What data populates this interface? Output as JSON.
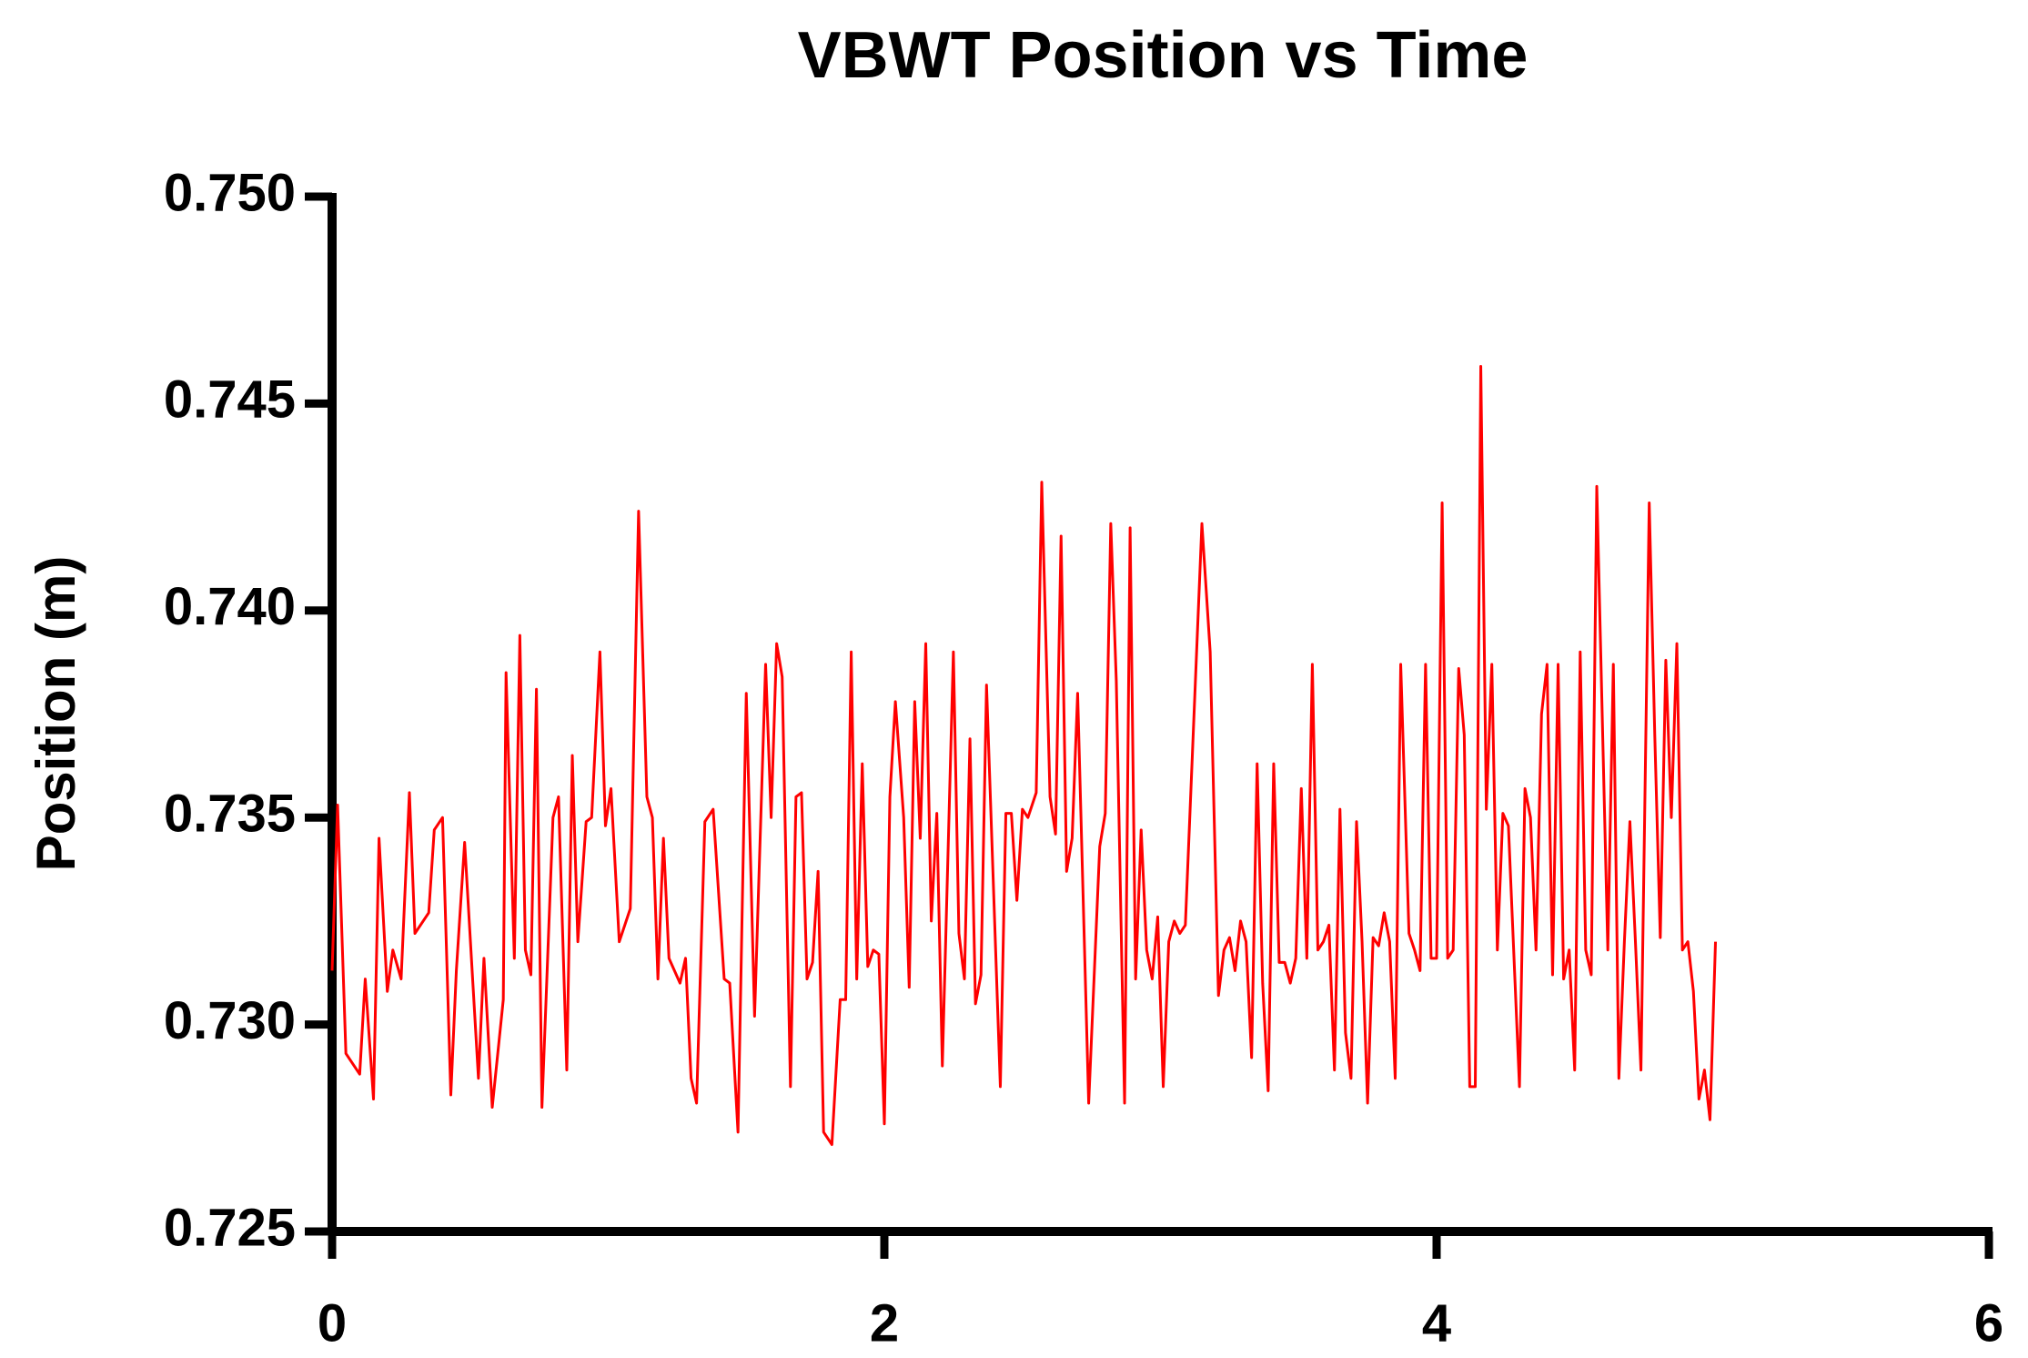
{
  "chart_data": {
    "type": "line",
    "title": "VBWT Position vs Time",
    "y_label": "Position (m)",
    "xlim": [
      0,
      6
    ],
    "xticks": [
      0,
      2,
      4,
      6
    ],
    "ylim": [
      0.725,
      0.75
    ],
    "yticks": [
      {
        "value": 0.725,
        "label": "0.725"
      },
      {
        "value": 0.73,
        "label": "0.730"
      },
      {
        "value": 0.735,
        "label": "0.735"
      },
      {
        "value": 0.74,
        "label": "0.740"
      },
      {
        "value": 0.745,
        "label": "0.745"
      },
      {
        "value": 0.75,
        "label": "0.750"
      }
    ],
    "grid": false,
    "series": [
      {
        "color": "#ff0000",
        "x": [
          0,
          0.02,
          0.05,
          0.1,
          0.12,
          0.15,
          0.17,
          0.2,
          0.22,
          0.25,
          0.28,
          0.3,
          0.35,
          0.37,
          0.4,
          0.43,
          0.45,
          0.48,
          0.53,
          0.55,
          0.58,
          0.62,
          0.63,
          0.66,
          0.68,
          0.7,
          0.72,
          0.74,
          0.76,
          0.8,
          0.82,
          0.85,
          0.87,
          0.89,
          0.92,
          0.94,
          0.97,
          0.99,
          1.01,
          1.04,
          1.08,
          1.11,
          1.14,
          1.16,
          1.18,
          1.2,
          1.22,
          1.26,
          1.28,
          1.3,
          1.32,
          1.35,
          1.38,
          1.42,
          1.44,
          1.47,
          1.5,
          1.53,
          1.57,
          1.59,
          1.61,
          1.63,
          1.66,
          1.68,
          1.7,
          1.72,
          1.74,
          1.76,
          1.78,
          1.81,
          1.84,
          1.86,
          1.88,
          1.9,
          1.92,
          1.94,
          1.96,
          1.98,
          2.0,
          2.02,
          2.04,
          2.07,
          2.09,
          2.11,
          2.13,
          2.15,
          2.17,
          2.19,
          2.21,
          2.25,
          2.27,
          2.29,
          2.31,
          2.33,
          2.35,
          2.37,
          2.42,
          2.44,
          2.46,
          2.48,
          2.5,
          2.52,
          2.55,
          2.57,
          2.6,
          2.62,
          2.64,
          2.66,
          2.68,
          2.7,
          2.74,
          2.78,
          2.8,
          2.82,
          2.84,
          2.87,
          2.89,
          2.91,
          2.93,
          2.95,
          2.97,
          2.99,
          3.01,
          3.03,
          3.05,
          3.07,
          3.09,
          3.15,
          3.18,
          3.21,
          3.23,
          3.25,
          3.27,
          3.29,
          3.31,
          3.33,
          3.35,
          3.37,
          3.39,
          3.41,
          3.43,
          3.45,
          3.47,
          3.49,
          3.51,
          3.53,
          3.55,
          3.57,
          3.59,
          3.61,
          3.63,
          3.65,
          3.67,
          3.69,
          3.71,
          3.73,
          3.75,
          3.77,
          3.79,
          3.81,
          3.83,
          3.85,
          3.87,
          3.9,
          3.92,
          3.94,
          3.96,
          3.98,
          4.0,
          4.02,
          4.04,
          4.06,
          4.08,
          4.1,
          4.12,
          4.14,
          4.16,
          4.18,
          4.2,
          4.22,
          4.24,
          4.26,
          4.3,
          4.32,
          4.34,
          4.36,
          4.38,
          4.4,
          4.42,
          4.44,
          4.46,
          4.48,
          4.5,
          4.52,
          4.54,
          4.56,
          4.58,
          4.62,
          4.64,
          4.66,
          4.68,
          4.7,
          4.72,
          4.74,
          4.77,
          4.79,
          4.81,
          4.83,
          4.85,
          4.87,
          4.89,
          4.91,
          4.93,
          4.95,
          4.97,
          4.99,
          5.01
        ],
        "values": [
          0.7313,
          0.7353,
          0.7293,
          0.7288,
          0.7311,
          0.7282,
          0.7345,
          0.7308,
          0.7318,
          0.7311,
          0.7356,
          0.7322,
          0.7327,
          0.7347,
          0.735,
          0.7283,
          0.7313,
          0.7344,
          0.7287,
          0.7316,
          0.728,
          0.7306,
          0.7385,
          0.7316,
          0.7394,
          0.7318,
          0.7312,
          0.7381,
          0.728,
          0.735,
          0.7355,
          0.7289,
          0.7365,
          0.732,
          0.7349,
          0.735,
          0.739,
          0.7348,
          0.7357,
          0.732,
          0.7328,
          0.7424,
          0.7355,
          0.735,
          0.7311,
          0.7345,
          0.7316,
          0.731,
          0.7316,
          0.7287,
          0.7281,
          0.7349,
          0.7352,
          0.7311,
          0.731,
          0.7274,
          0.738,
          0.7302,
          0.7387,
          0.735,
          0.7392,
          0.7384,
          0.7285,
          0.7355,
          0.7356,
          0.7311,
          0.7315,
          0.7337,
          0.7274,
          0.7271,
          0.7306,
          0.7306,
          0.739,
          0.7311,
          0.7363,
          0.7314,
          0.7318,
          0.7317,
          0.7276,
          0.7355,
          0.7378,
          0.735,
          0.7309,
          0.7378,
          0.7345,
          0.7392,
          0.7325,
          0.7351,
          0.729,
          0.739,
          0.7322,
          0.7311,
          0.7369,
          0.7305,
          0.7312,
          0.7382,
          0.7285,
          0.7351,
          0.7351,
          0.733,
          0.7352,
          0.735,
          0.7356,
          0.7431,
          0.7355,
          0.7346,
          0.7418,
          0.7337,
          0.7345,
          0.738,
          0.7281,
          0.7343,
          0.7351,
          0.7421,
          0.7383,
          0.7281,
          0.742,
          0.7311,
          0.7347,
          0.7318,
          0.7311,
          0.7326,
          0.7285,
          0.732,
          0.7325,
          0.7322,
          0.7324,
          0.7421,
          0.739,
          0.7307,
          0.7318,
          0.7321,
          0.7313,
          0.7325,
          0.732,
          0.7292,
          0.7363,
          0.731,
          0.7284,
          0.7363,
          0.7315,
          0.7315,
          0.731,
          0.7316,
          0.7357,
          0.7316,
          0.7387,
          0.7318,
          0.732,
          0.7324,
          0.7289,
          0.7352,
          0.7298,
          0.7287,
          0.7349,
          0.732,
          0.7281,
          0.7321,
          0.7319,
          0.7327,
          0.732,
          0.7287,
          0.7387,
          0.7322,
          0.7318,
          0.7313,
          0.7387,
          0.7316,
          0.7316,
          0.7426,
          0.7316,
          0.7318,
          0.7386,
          0.737,
          0.7285,
          0.7285,
          0.7459,
          0.7352,
          0.7387,
          0.7318,
          0.7351,
          0.7348,
          0.7285,
          0.7357,
          0.735,
          0.7318,
          0.7375,
          0.7387,
          0.7312,
          0.7387,
          0.7311,
          0.7318,
          0.7289,
          0.739,
          0.7318,
          0.7312,
          0.743,
          0.7318,
          0.7387,
          0.7287,
          0.732,
          0.7349,
          0.732,
          0.7289,
          0.7426,
          0.737,
          0.7321,
          0.7388,
          0.735,
          0.7392,
          0.7318,
          0.732,
          0.7308,
          0.7282,
          0.7289,
          0.7277,
          0.732
        ]
      }
    ]
  }
}
